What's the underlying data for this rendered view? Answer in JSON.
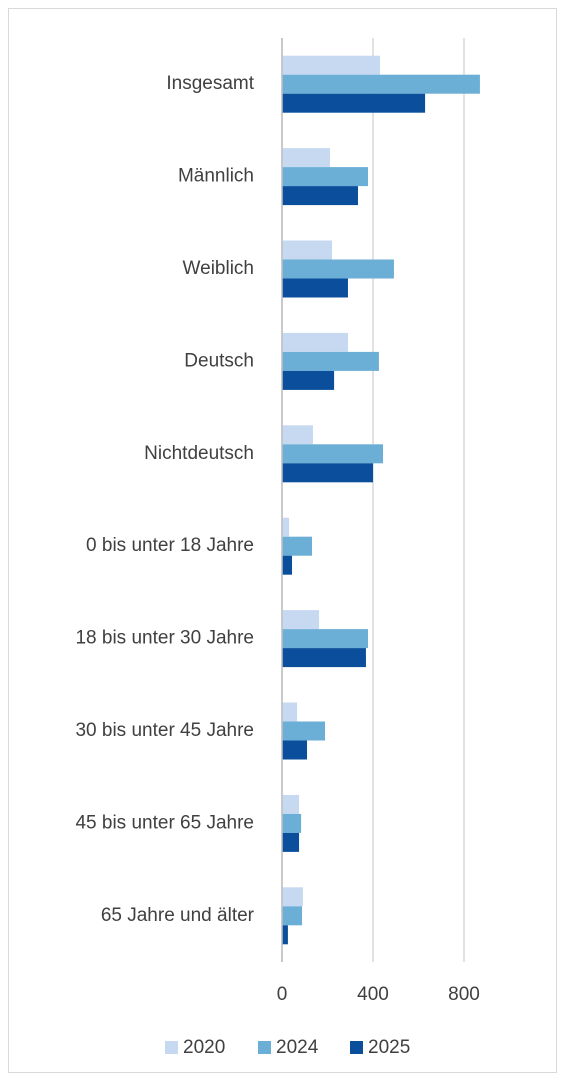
{
  "chart_data": {
    "type": "hbar",
    "categories": [
      "Insgesamt",
      "Männlich",
      "Weiblich",
      "Deutsch",
      "Nichtdeutsch",
      "0 bis unter 18 Jahre",
      "18 bis unter 30 Jahre",
      "30 bis unter 45 Jahre",
      "45 bis unter 65 Jahre",
      "65 Jahre und älter"
    ],
    "series": [
      {
        "name": "2020",
        "color": "#c6d9f0",
        "values": [
          431,
          211,
          220,
          290,
          136,
          31,
          163,
          66,
          75,
          92
        ]
      },
      {
        "name": "2024",
        "color": "#6baed6",
        "values": [
          870,
          378,
          492,
          426,
          444,
          132,
          378,
          189,
          84,
          88
        ]
      },
      {
        "name": "2025",
        "color": "#0b4f9c",
        "values": [
          629,
          334,
          290,
          229,
          400,
          44,
          369,
          110,
          75,
          26
        ]
      }
    ],
    "xlim": [
      0,
      1200
    ],
    "xticks": [
      0,
      400,
      800
    ],
    "grid": true,
    "legend": "bottom"
  }
}
